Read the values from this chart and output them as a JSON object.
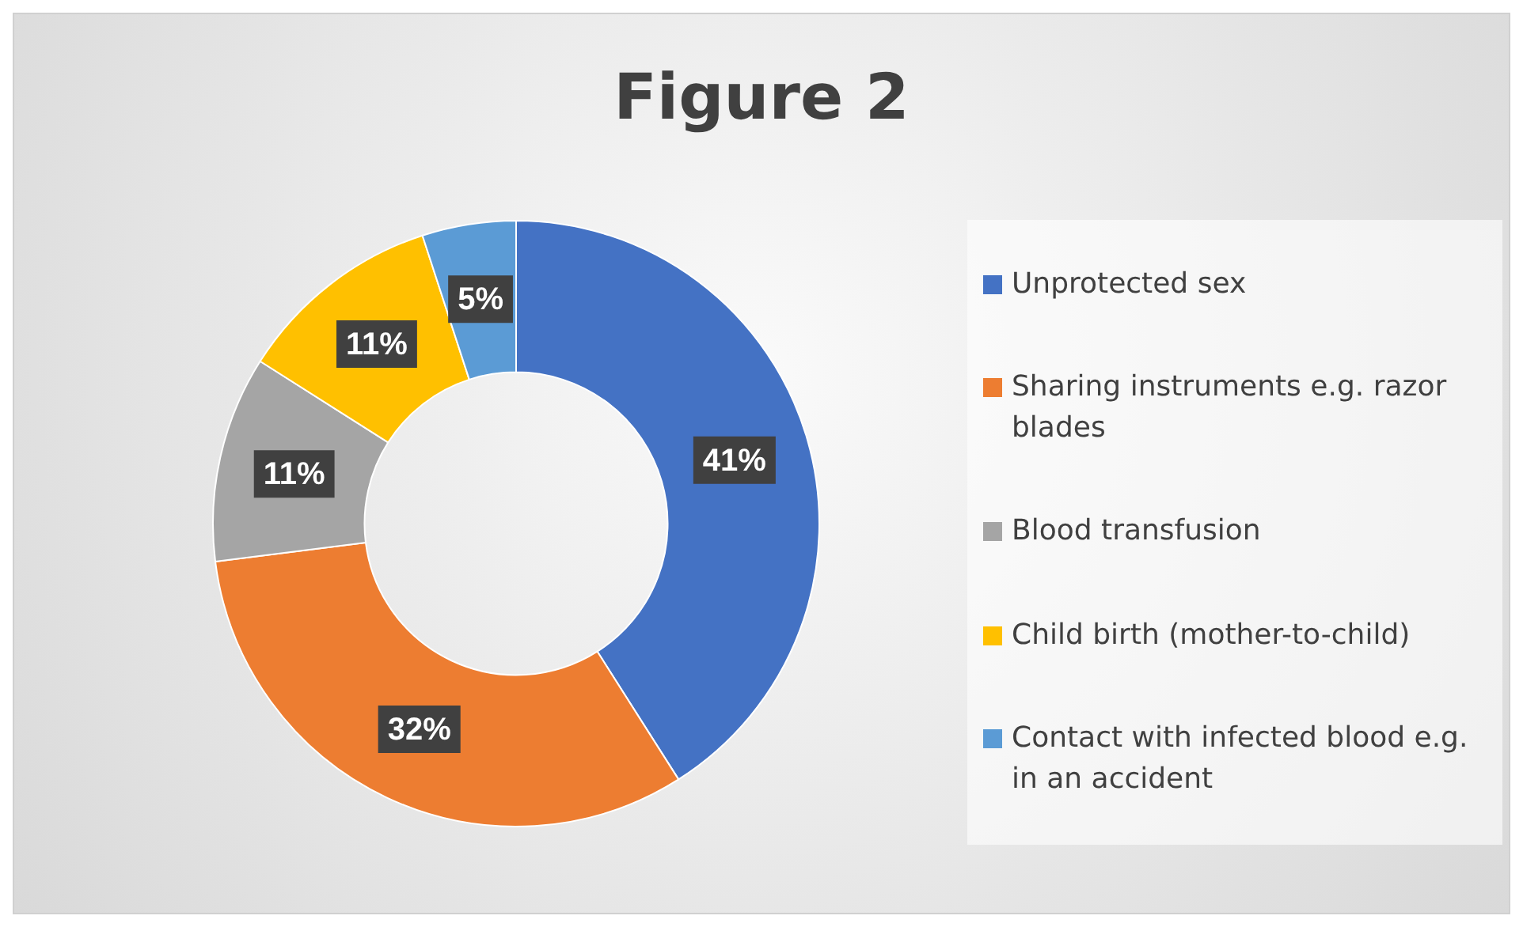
{
  "chart_data": {
    "type": "donut",
    "title": "Figure 2",
    "categories": [
      "Unprotected sex",
      "Sharing instruments e.g. razor blades",
      "Blood transfusion",
      "Child birth (mother-to-child)",
      "Contact with infected blood e.g. in an accident"
    ],
    "values": [
      41,
      32,
      11,
      11,
      5
    ],
    "colors": [
      "#4472c4",
      "#ed7d31",
      "#a5a5a5",
      "#ffc000",
      "#5b9bd5"
    ],
    "value_labels": [
      "41%",
      "32%",
      "11%",
      "11%",
      "5%"
    ],
    "legend": "right"
  }
}
